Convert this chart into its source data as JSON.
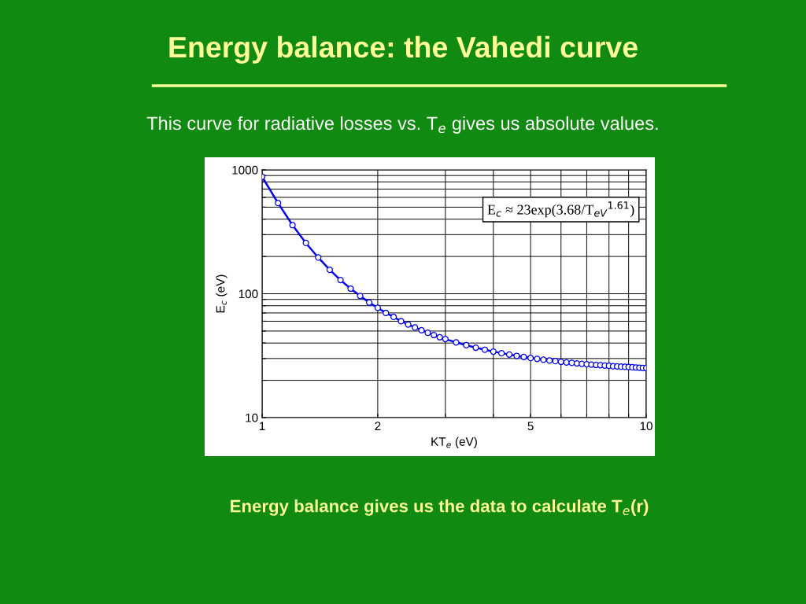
{
  "chart_data": {
    "type": "line",
    "title": "Energy balance: the Vahedi curve",
    "subtitle": "This curve for radiative losses vs. T$_{e}$ gives us absolute values.",
    "xlabel": "KT$_{e}$ (eV)",
    "ylabel": "E$_{c}$ (eV)",
    "annotations": [
      "E$_{c}$ ≈ 23exp(3.68/T$_{eV}$$^{1.61}$)",
      "Energy balance gives us the data to calculate T$_{e}$(r)"
    ],
    "log": "xy",
    "grid": true,
    "marker": "circle",
    "line_style": "solid",
    "xlim": [
      1,
      10
    ],
    "ylim": [
      10,
      1000
    ],
    "xticks": [
      1,
      2,
      {
        "value": 3,
        "label": null
      },
      {
        "value": 4,
        "label": null
      },
      5,
      {
        "value": 6,
        "label": null
      },
      {
        "value": 7,
        "label": null
      },
      {
        "value": 8,
        "label": null
      },
      {
        "value": 9,
        "label": null
      },
      10
    ],
    "yticks": [
      10,
      {
        "value": 20,
        "label": null
      },
      {
        "value": 30,
        "label": null
      },
      {
        "value": 40,
        "label": null
      },
      {
        "value": 50,
        "label": null
      },
      {
        "value": 60,
        "label": null
      },
      {
        "value": 70,
        "label": null
      },
      {
        "value": 80,
        "label": null
      },
      {
        "value": 90,
        "label": null
      },
      100,
      {
        "value": 200,
        "label": null
      },
      {
        "value": 300,
        "label": null
      },
      {
        "value": 400,
        "label": null
      },
      {
        "value": 500,
        "label": null
      },
      {
        "value": 600,
        "label": null
      },
      {
        "value": 700,
        "label": null
      },
      {
        "value": 800,
        "label": null
      },
      {
        "value": 900,
        "label": null
      },
      1000
    ],
    "series": [
      {
        "color": "#0000ee",
        "x": [
          1.0,
          1.1,
          1.2,
          1.3,
          1.4,
          1.5,
          1.6,
          1.7,
          1.8,
          1.9,
          2.0,
          2.1,
          2.2,
          2.3,
          2.4,
          2.5,
          2.6,
          2.7,
          2.8,
          2.9,
          3.0,
          3.2,
          3.4,
          3.6,
          3.8,
          4.0,
          4.2,
          4.4,
          4.6,
          4.8,
          5.0,
          5.2,
          5.4,
          5.6,
          5.8,
          6.0,
          6.2,
          6.4,
          6.6,
          6.8,
          7.0,
          7.2,
          7.4,
          7.6,
          7.8,
          8.0,
          8.2,
          8.4,
          8.6,
          8.8,
          9.0,
          9.2,
          9.4,
          9.6,
          9.8,
          10.0
        ],
        "values": [
          880,
          540,
          358,
          257,
          196,
          156,
          129,
          110,
          96,
          85,
          77,
          70,
          65,
          60,
          56.5,
          53.4,
          50.7,
          48.4,
          46.4,
          44.6,
          43.1,
          40.5,
          38.4,
          36.7,
          35.3,
          34.1,
          33.1,
          32.3,
          31.5,
          30.9,
          30.3,
          29.8,
          29.3,
          28.9,
          28.6,
          28.2,
          27.9,
          27.7,
          27.4,
          27.2,
          27.0,
          26.8,
          26.6,
          26.5,
          26.3,
          26.2,
          26.0,
          25.9,
          25.8,
          25.7,
          25.6,
          25.5,
          25.4,
          25.3,
          25.2,
          25.2
        ]
      }
    ]
  }
}
